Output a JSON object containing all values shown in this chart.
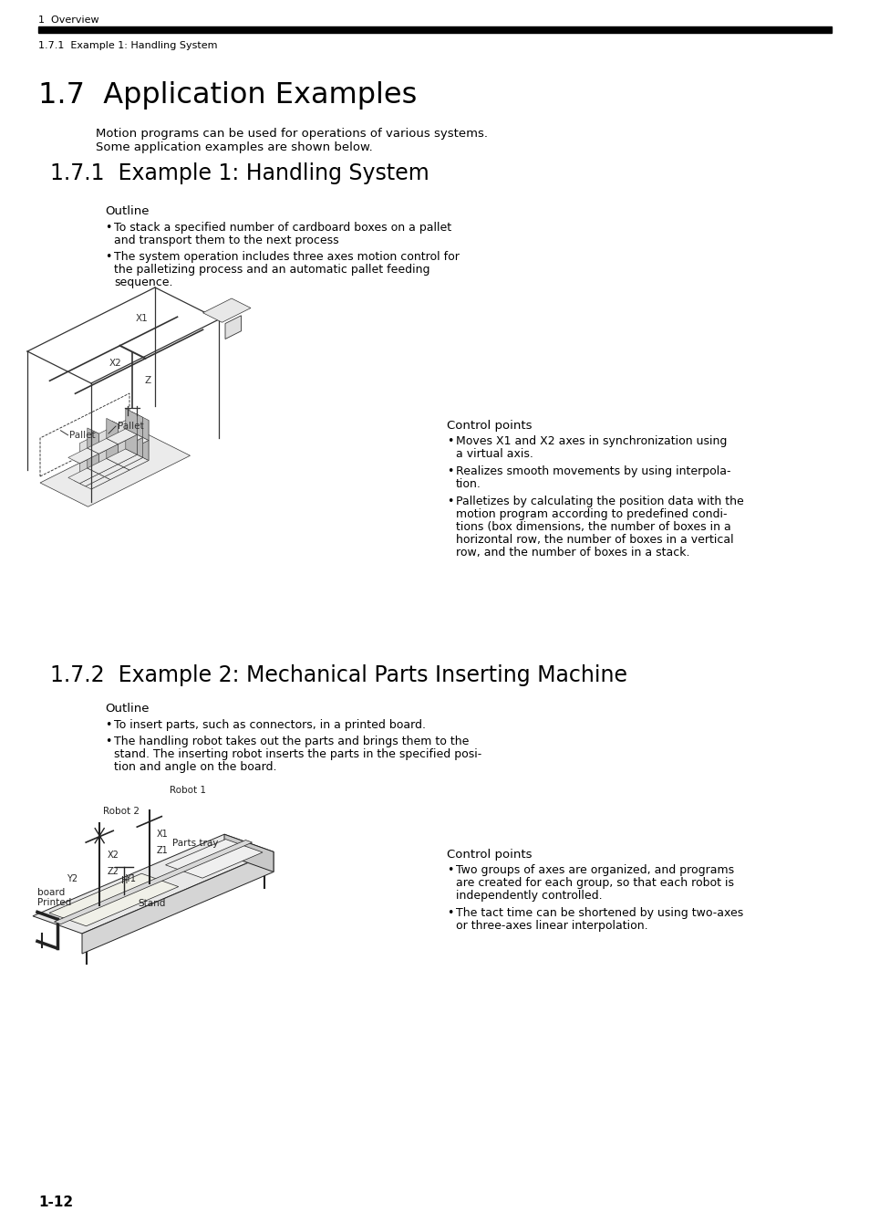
{
  "bg_color": "#ffffff",
  "text_color": "#000000",
  "header_top_text": "1  Overview",
  "header_bar_color": "#000000",
  "header_bottom_text": "1.7.1  Example 1: Handling System",
  "main_title": "1.7  Application Examples",
  "intro_line1": "Motion programs can be used for operations of various systems.",
  "intro_line2": "Some application examples are shown below.",
  "section1_title": "1.7.1  Example 1: Handling System",
  "section1_outline_label": "Outline",
  "section1_bullet1_line1": "To stack a specified number of cardboard boxes on a pallet",
  "section1_bullet1_line2": "and transport them to the next process",
  "section1_bullet2_line1": "The system operation includes three axes motion control for",
  "section1_bullet2_line2": "the palletizing process and an automatic pallet feeding",
  "section1_bullet2_line3": "sequence.",
  "section1_control_label": "Control points",
  "section1_cp1_line1": "Moves X1 and X2 axes in synchronization using",
  "section1_cp1_line2": "a virtual axis.",
  "section1_cp2_line1": "Realizes smooth movements by using interpola-",
  "section1_cp2_line2": "tion.",
  "section1_cp3_line1": "Palletizes by calculating the position data with the",
  "section1_cp3_line2": "motion program according to predefined condi-",
  "section1_cp3_line3": "tions (box dimensions, the number of boxes in a",
  "section1_cp3_line4": "horizontal row, the number of boxes in a vertical",
  "section1_cp3_line5": "row, and the number of boxes in a stack.",
  "section2_title": "1.7.2  Example 2: Mechanical Parts Inserting Machine",
  "section2_outline_label": "Outline",
  "section2_bullet1": "To insert parts, such as connectors, in a printed board.",
  "section2_bullet2_line1": "The handling robot takes out the parts and brings them to the",
  "section2_bullet2_line2": "stand. The inserting robot inserts the parts in the specified posi-",
  "section2_bullet2_line3": "tion and angle on the board.",
  "section2_control_label": "Control points",
  "section2_cp1_line1": "Two groups of axes are organized, and programs",
  "section2_cp1_line2": "are created for each group, so that each robot is",
  "section2_cp1_line3": "independently controlled.",
  "section2_cp2_line1": "The tact time can be shortened by using two-axes",
  "section2_cp2_line2": "or three-axes linear interpolation.",
  "footer_text": "1-12"
}
